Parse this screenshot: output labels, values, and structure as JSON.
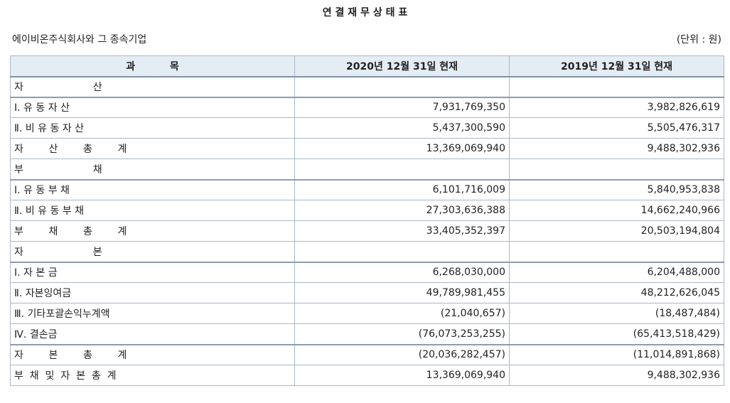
{
  "title": "연 결 재 무 상 태 표",
  "company": "에이비온주식회사와 그 종속기업",
  "unit": "(단위 : 원)",
  "headers": {
    "account": "과          목",
    "current": "2020년 12월 31일 현재",
    "prior": "2019년 12월 31일 현재"
  },
  "rows": [
    {
      "label": "자                      산",
      "current": "",
      "prior": ""
    },
    {
      "label": "Ⅰ. 유 동 자 산",
      "current": "7,931,769,350",
      "prior": "3,982,826,619"
    },
    {
      "label": "Ⅱ. 비 유 동 자 산",
      "current": "5,437,300,590",
      "prior": "5,505,476,317"
    },
    {
      "label": "자        산        총        계",
      "current": "13,369,069,940",
      "prior": "9,488,302,936"
    },
    {
      "label": "부                      채",
      "current": "",
      "prior": ""
    },
    {
      "label": "Ⅰ. 유 동 부 채",
      "current": "6,101,716,009",
      "prior": "5,840,953,838"
    },
    {
      "label": "Ⅱ. 비 유 동 부 채",
      "current": "27,303,636,388",
      "prior": "14,662,240,966"
    },
    {
      "label": "부        채        총        계",
      "current": "33,405,352,397",
      "prior": "20,503,194,804"
    },
    {
      "label": "자                      본",
      "current": "",
      "prior": ""
    },
    {
      "label": "Ⅰ. 자 본 금",
      "current": "6,268,030,000",
      "prior": "6,204,488,000"
    },
    {
      "label": "Ⅱ. 자본잉여금",
      "current": "49,789,981,455",
      "prior": "48,212,626,045"
    },
    {
      "label": "Ⅲ. 기타포괄손익누계액",
      "current": "(21,040,657)",
      "prior": "(18,487,484)"
    },
    {
      "label": "Ⅳ. 결손금",
      "current": "(76,073,253,255)",
      "prior": "(65,413,518,429)"
    },
    {
      "label": "자        본        총        계",
      "current": "(20,036,282,457)",
      "prior": "(11,014,891,868)"
    },
    {
      "label": "부  채  및  자  본  총  계",
      "current": "13,369,069,940",
      "prior": "9,488,302,936"
    }
  ]
}
